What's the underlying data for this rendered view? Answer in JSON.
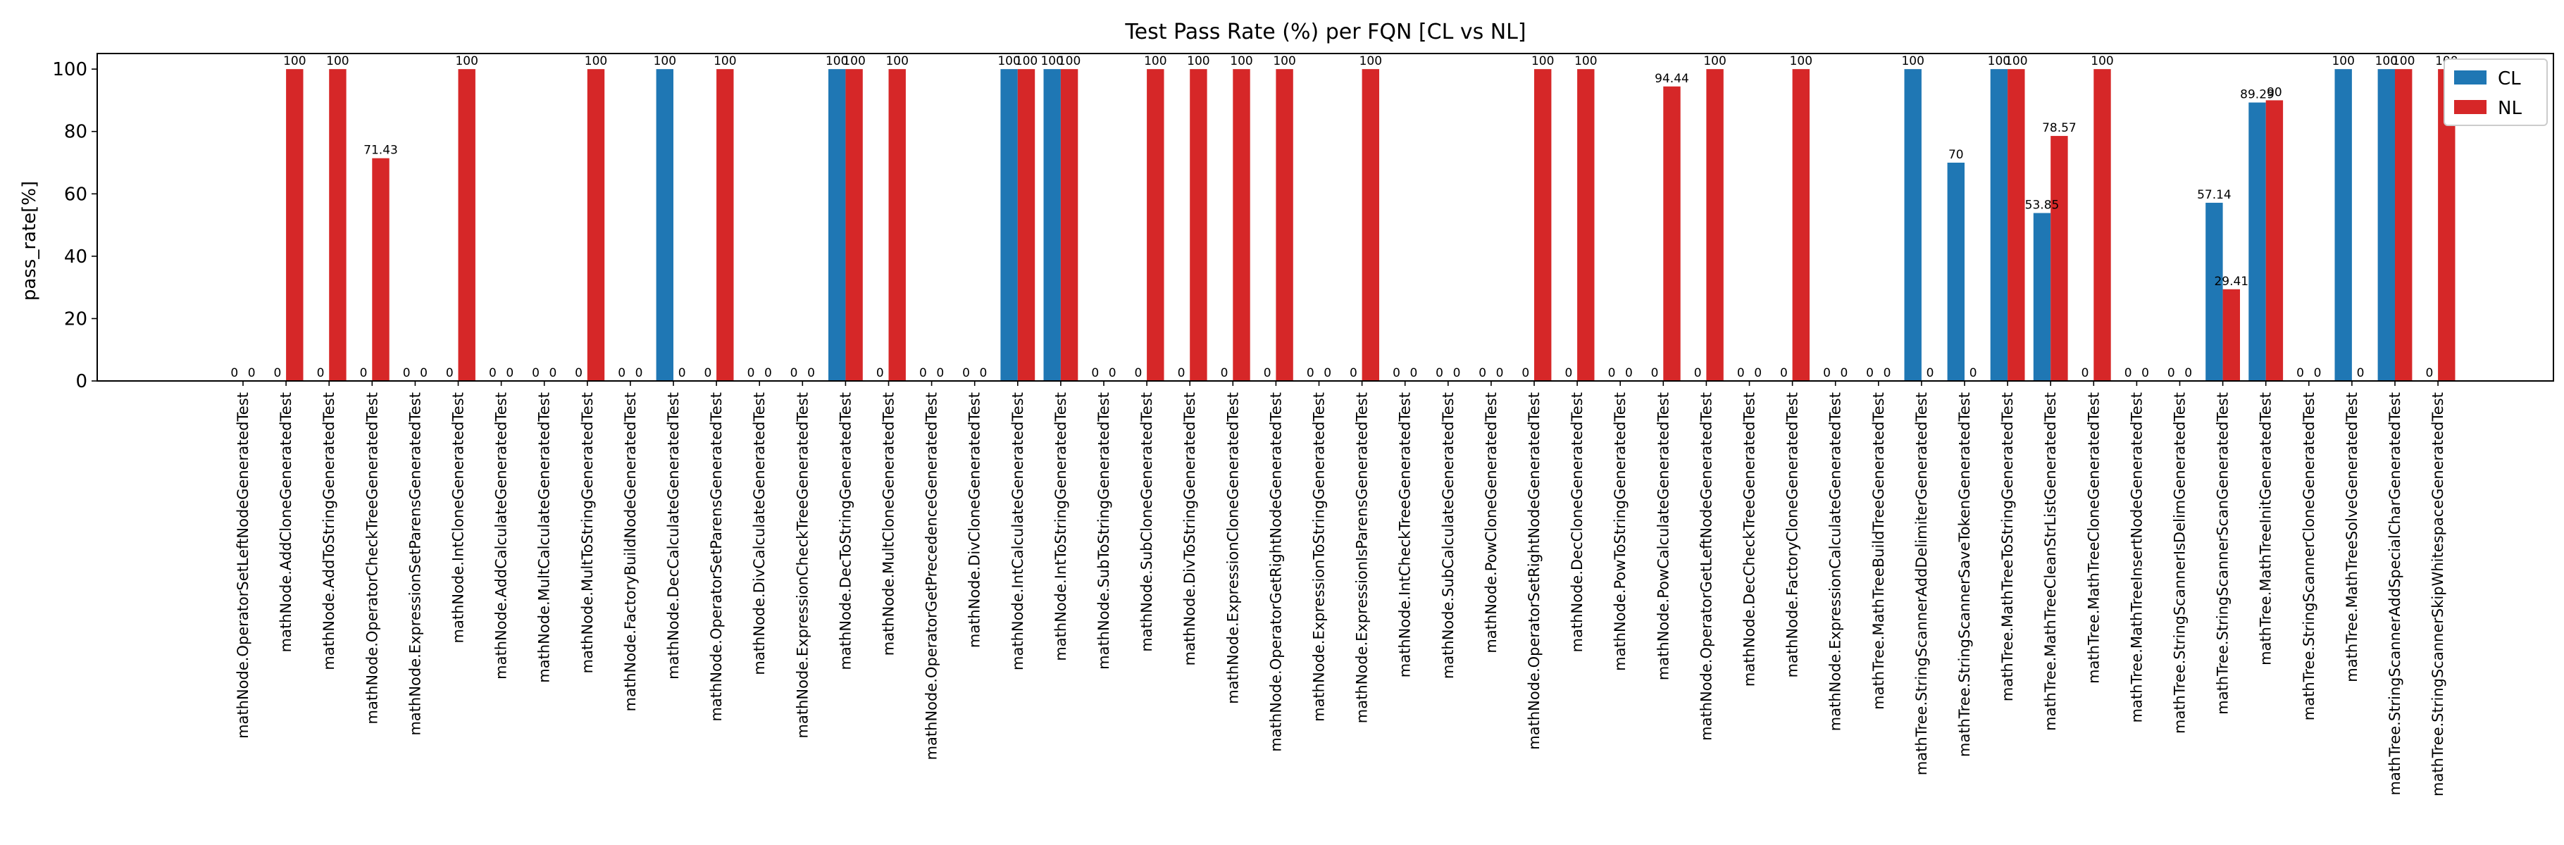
{
  "chart_data": {
    "type": "bar",
    "title": "Test Pass Rate (%) per FQN [CL vs NL]",
    "xlabel": "",
    "ylabel": "pass_rate[%]",
    "ylim": [
      0,
      105
    ],
    "yticks": [
      0,
      20,
      40,
      60,
      80,
      100
    ],
    "grid": false,
    "legend_position": "top-right",
    "colors": {
      "CL": "#1f77b4",
      "NL": "#d62728"
    },
    "categories": [
      "mathNode.OperatorSetLeftNodeGeneratedTest",
      "mathNode.AddCloneGeneratedTest",
      "mathNode.AddToStringGeneratedTest",
      "mathNode.OperatorCheckTreeGeneratedTest",
      "mathNode.ExpressionSetParensGeneratedTest",
      "mathNode.IntCloneGeneratedTest",
      "mathNode.AddCalculateGeneratedTest",
      "mathNode.MultCalculateGeneratedTest",
      "mathNode.MultToStringGeneratedTest",
      "mathNode.FactoryBuildNodeGeneratedTest",
      "mathNode.DecCalculateGeneratedTest",
      "mathNode.OperatorSetParensGeneratedTest",
      "mathNode.DivCalculateGeneratedTest",
      "mathNode.ExpressionCheckTreeGeneratedTest",
      "mathNode.DecToStringGeneratedTest",
      "mathNode.MultCloneGeneratedTest",
      "mathNode.OperatorGetPrecedenceGeneratedTest",
      "mathNode.DivCloneGeneratedTest",
      "mathNode.IntCalculateGeneratedTest",
      "mathNode.IntToStringGeneratedTest",
      "mathNode.SubToStringGeneratedTest",
      "mathNode.SubCloneGeneratedTest",
      "mathNode.DivToStringGeneratedTest",
      "mathNode.ExpressionCloneGeneratedTest",
      "mathNode.OperatorGetRightNodeGeneratedTest",
      "mathNode.ExpressionToStringGeneratedTest",
      "mathNode.ExpressionIsParensGeneratedTest",
      "mathNode.IntCheckTreeGeneratedTest",
      "mathNode.SubCalculateGeneratedTest",
      "mathNode.PowCloneGeneratedTest",
      "mathNode.OperatorSetRightNodeGeneratedTest",
      "mathNode.DecCloneGeneratedTest",
      "mathNode.PowToStringGeneratedTest",
      "mathNode.PowCalculateGeneratedTest",
      "mathNode.OperatorGetLeftNodeGeneratedTest",
      "mathNode.DecCheckTreeGeneratedTest",
      "mathNode.FactoryCloneGeneratedTest",
      "mathNode.ExpressionCalculateGeneratedTest",
      "mathTree.MathTreeBuildTreeGeneratedTest",
      "mathTree.StringScannerAddDelimiterGeneratedTest",
      "mathTree.StringScannerSaveTokenGeneratedTest",
      "mathTree.MathTreeToStringGeneratedTest",
      "mathTree.MathTreeCleanStrListGeneratedTest",
      "mathTree.MathTreeCloneGeneratedTest",
      "mathTree.MathTreeInsertNodeGeneratedTest",
      "mathTree.StringScannerIsDelimGeneratedTest",
      "mathTree.StringScannerScanGeneratedTest",
      "mathTree.MathTreeInitGeneratedTest",
      "mathTree.StringScannerCloneGeneratedTest",
      "mathTree.MathTreeSolveGeneratedTest",
      "mathTree.StringScannerAddSpecialCharGeneratedTest",
      "mathTree.StringScannerSkipWhitespaceGeneratedTest"
    ],
    "series": [
      {
        "name": "CL",
        "values": [
          0,
          0,
          0,
          0,
          0,
          0,
          0,
          0,
          0,
          0,
          100,
          0,
          0,
          0,
          100,
          0,
          0,
          0,
          100,
          100,
          0,
          0,
          0,
          0,
          0,
          0,
          0,
          0,
          0,
          0,
          0,
          0,
          0,
          0,
          0,
          0,
          0,
          0,
          0,
          100,
          70,
          100,
          53.85,
          0,
          0,
          0,
          57.14,
          89.29,
          0,
          100,
          100,
          0
        ]
      },
      {
        "name": "NL",
        "values": [
          0,
          100,
          100,
          71.43,
          0,
          100,
          0,
          0,
          100,
          0,
          0,
          100,
          0,
          0,
          100,
          100,
          0,
          0,
          100,
          100,
          0,
          100,
          100,
          100,
          100,
          0,
          100,
          0,
          0,
          0,
          100,
          100,
          0,
          94.44,
          100,
          0,
          100,
          0,
          0,
          0,
          0,
          100,
          78.57,
          100,
          0,
          0,
          29.41,
          90,
          0,
          0,
          100,
          100
        ]
      }
    ]
  }
}
